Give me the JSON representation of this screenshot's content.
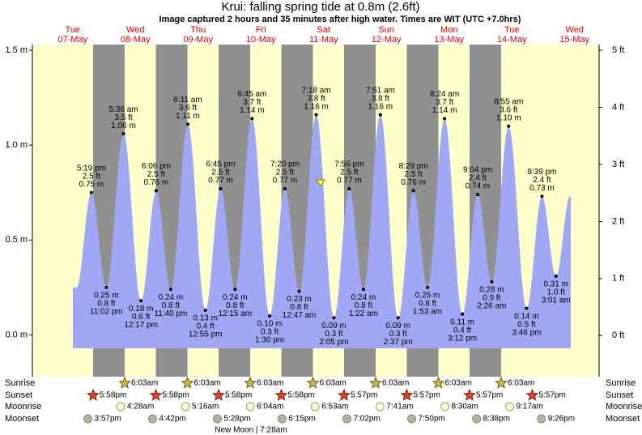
{
  "chart_data": {
    "type": "tide",
    "title": "Krui: falling  spring tide at 0.8m (2.6ft)",
    "subtitle": "Image captured 2 hours and 35 minutes after high water. Times are WIT (UTC +7.0hrs)",
    "days": [
      [
        "Tue",
        "07-May"
      ],
      [
        "Wed",
        "08-May"
      ],
      [
        "Thu",
        "09-May"
      ],
      [
        "Fri",
        "10-May"
      ],
      [
        "Sat",
        "11-May"
      ],
      [
        "Sun",
        "12-May"
      ],
      [
        "Mon",
        "13-May"
      ],
      [
        "Tue",
        "14-May"
      ],
      [
        "Wed",
        "15-May"
      ]
    ],
    "ylim": [
      -0.22,
      1.53
    ],
    "yticks": [
      {
        "value": 0,
        "label": "0.0 m"
      },
      {
        "value": 0.5,
        "label": "0.5 m"
      },
      {
        "value": 1.0,
        "label": "1.0 m"
      },
      {
        "value": 1.5,
        "label": "1.5 m"
      }
    ],
    "y2lim": [
      -0.72,
      5.1
    ],
    "y2ticks": [
      {
        "value": 0,
        "label": "0 ft"
      },
      {
        "value": 1,
        "label": "1 ft"
      },
      {
        "value": 2,
        "label": "2 ft"
      },
      {
        "value": 3,
        "label": "3 ft"
      },
      {
        "value": 4,
        "label": "4 ft"
      },
      {
        "value": 5,
        "label": "5 ft"
      }
    ],
    "current_level": {
      "value": 0.8
    },
    "colors": {
      "day": "#ffffcc",
      "night": "#909090",
      "water": "#a0a8f5"
    },
    "events": [
      {
        "time": "5:19 pm",
        "m": {
          "value": 0.75,
          "label": "0.75 m"
        },
        "ft": {
          "value": 2.5,
          "label": "2.5 ft"
        }
      },
      {
        "time": "11:02 pm",
        "m": {
          "value": 0.25,
          "label": "0.25 m"
        },
        "ft": {
          "value": 0.8,
          "label": "0.8 ft"
        }
      },
      {
        "time": "5:36 am",
        "m": {
          "value": 1.06,
          "label": "1.06 m"
        },
        "ft": {
          "value": 3.5,
          "label": "3.5 ft"
        }
      },
      {
        "time": "12:17 pm",
        "m": {
          "value": 0.18,
          "label": "0.18 m"
        },
        "ft": {
          "value": 0.6,
          "label": "0.6 ft"
        }
      },
      {
        "time": "6:06 pm",
        "m": {
          "value": 0.76,
          "label": "0.76 m"
        },
        "ft": {
          "value": 2.5,
          "label": "2.5 ft"
        }
      },
      {
        "time": "11:40 pm",
        "m": {
          "value": 0.24,
          "label": "0.24 m"
        },
        "ft": {
          "value": 0.8,
          "label": "0.8 ft"
        }
      },
      {
        "time": "6:11 am",
        "m": {
          "value": 1.11,
          "label": "1.11 m"
        },
        "ft": {
          "value": 3.6,
          "label": "3.6 ft"
        }
      },
      {
        "time": "12:55 pm",
        "m": {
          "value": 0.13,
          "label": "0.13 m"
        },
        "ft": {
          "value": 0.4,
          "label": "0.4 ft"
        }
      },
      {
        "time": "6:45 pm",
        "m": {
          "value": 0.77,
          "label": "0.77 m"
        },
        "ft": {
          "value": 2.5,
          "label": "2.5 ft"
        }
      },
      {
        "time": "12:15 am",
        "m": {
          "value": 0.24,
          "label": "0.24 m"
        },
        "ft": {
          "value": 0.8,
          "label": "0.8 ft"
        }
      },
      {
        "time": "6:45 am",
        "m": {
          "value": 1.14,
          "label": "1.14 m"
        },
        "ft": {
          "value": 3.7,
          "label": "3.7 ft"
        }
      },
      {
        "time": "1:30 pm",
        "m": {
          "value": 0.1,
          "label": "0.10 m"
        },
        "ft": {
          "value": 0.3,
          "label": "0.3 ft"
        }
      },
      {
        "time": "7:20 pm",
        "m": {
          "value": 0.77,
          "label": "0.77 m"
        },
        "ft": {
          "value": 2.5,
          "label": "2.5 ft"
        }
      },
      {
        "time": "12:47 am",
        "m": {
          "value": 0.23,
          "label": "0.23 m"
        },
        "ft": {
          "value": 0.8,
          "label": "0.8 ft"
        }
      },
      {
        "time": "7:18 am",
        "m": {
          "value": 1.16,
          "label": "1.16 m"
        },
        "ft": {
          "value": 3.8,
          "label": "3.8 ft"
        }
      },
      {
        "time": "2:05 pm",
        "m": {
          "value": 0.09,
          "label": "0.09 m"
        },
        "ft": {
          "value": 0.3,
          "label": "0.3 ft"
        }
      },
      {
        "time": "7:56 pm",
        "m": {
          "value": 0.77,
          "label": "0.77 m"
        },
        "ft": {
          "value": 2.5,
          "label": "2.5 ft"
        }
      },
      {
        "time": "1:22 am",
        "m": {
          "value": 0.24,
          "label": "0.24 m"
        },
        "ft": {
          "value": 0.8,
          "label": "0.8 ft"
        }
      },
      {
        "time": "7:51 am",
        "m": {
          "value": 1.16,
          "label": "1.16 m"
        },
        "ft": {
          "value": 3.8,
          "label": "3.8 ft"
        }
      },
      {
        "time": "2:37 pm",
        "m": {
          "value": 0.09,
          "label": "0.09 m"
        },
        "ft": {
          "value": 0.3,
          "label": "0.3 ft"
        }
      },
      {
        "time": "8:29 pm",
        "m": {
          "value": 0.76,
          "label": "0.76 m"
        },
        "ft": {
          "value": 2.5,
          "label": "2.5 ft"
        }
      },
      {
        "time": "1:53 am",
        "m": {
          "value": 0.25,
          "label": "0.25 m"
        },
        "ft": {
          "value": 0.8,
          "label": "0.8 ft"
        }
      },
      {
        "time": "8:24 am",
        "m": {
          "value": 1.14,
          "label": "1.14 m"
        },
        "ft": {
          "value": 3.7,
          "label": "3.7 ft"
        }
      },
      {
        "time": "3:12 pm",
        "m": {
          "value": 0.11,
          "label": "0.11 m"
        },
        "ft": {
          "value": 0.4,
          "label": "0.4 ft"
        }
      },
      {
        "time": "9:04 pm",
        "m": {
          "value": 0.74,
          "label": "0.74 m"
        },
        "ft": {
          "value": 2.4,
          "label": "2.4 ft"
        }
      },
      {
        "time": "2:26 am",
        "m": {
          "value": 0.28,
          "label": "0.28 m"
        },
        "ft": {
          "value": 0.9,
          "label": "0.9 ft"
        }
      },
      {
        "time": "8:55 am",
        "m": {
          "value": 1.1,
          "label": "1.10 m"
        },
        "ft": {
          "value": 3.6,
          "label": "3.6 ft"
        }
      },
      {
        "time": "3:46 pm",
        "m": {
          "value": 0.14,
          "label": "0.14 m"
        },
        "ft": {
          "value": 0.5,
          "label": "0.5 ft"
        }
      },
      {
        "time": "9:39 pm",
        "m": {
          "value": 0.73,
          "label": "0.73 m"
        },
        "ft": {
          "value": 2.4,
          "label": "2.4 ft"
        }
      },
      {
        "time": "3:01 am",
        "m": {
          "value": 0.31,
          "label": "0.31 m"
        },
        "ft": {
          "value": 1.0,
          "label": "1.0 ft"
        }
      }
    ],
    "rows": [
      {
        "name": "Sunrise",
        "icon": "sunrise",
        "times": [
          "6:03am",
          "6:03am",
          "6:03am",
          "6:03am",
          "6:03am",
          "6:03am",
          "6:03am"
        ]
      },
      {
        "name": "Sunset",
        "icon": "sunset",
        "times": [
          "5:58pm",
          "5:58pm",
          "5:58pm",
          "5:58pm",
          "5:57pm",
          "5:57pm",
          "5:57pm",
          "5:57pm"
        ]
      },
      {
        "name": "Moonrise",
        "icon": "moonrise",
        "times": [
          "4:28am",
          "5:16am",
          "6:04am",
          "6:53am",
          "7:41am",
          "8:30am",
          "9:17am"
        ]
      },
      {
        "name": "Moonset",
        "icon": "moonset",
        "times": [
          "3:57pm",
          "4:42pm",
          "5:28pm",
          "6:15pm",
          "7:02pm",
          "7:50pm",
          "8:38pm",
          "9:26pm"
        ]
      }
    ],
    "moon_phase": "New Moon | 7:28am"
  }
}
